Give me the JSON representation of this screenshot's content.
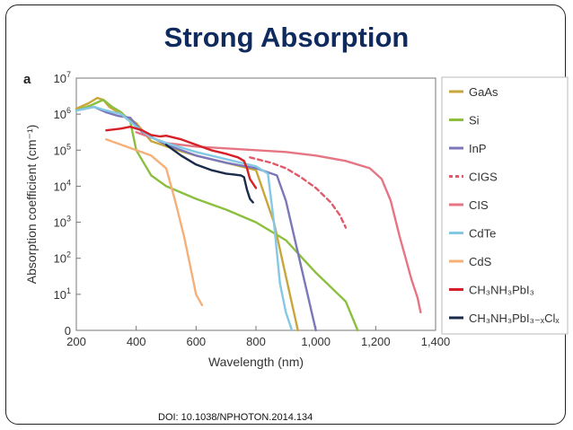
{
  "slide": {
    "title": "Strong Absorption",
    "doi": "DOI: 10.1038/NPHOTON.2014.134"
  },
  "chart_data": {
    "type": "line",
    "panel_label": "a",
    "xlabel": "Wavelength (nm)",
    "ylabel": "Absorption coefficient (cm⁻¹)",
    "xlim": [
      200,
      1400
    ],
    "ylim": [
      0,
      7
    ],
    "y_scale": "log10 (exponent shown; bottom tick 0)",
    "x_ticks": [
      200,
      400,
      600,
      800,
      1000,
      1200,
      1400
    ],
    "x_tick_labels": [
      "200",
      "400",
      "600",
      "800",
      "1,000",
      "1,200",
      "1,400"
    ],
    "y_ticks": [
      0,
      1,
      2,
      3,
      4,
      5,
      6,
      7
    ],
    "y_tick_labels": [
      "0",
      "10",
      "10",
      "10",
      "10",
      "10",
      "10",
      "10"
    ],
    "y_tick_exponents": [
      "",
      "1",
      "2",
      "3",
      "4",
      "5",
      "6",
      "7"
    ],
    "legend_position": "right",
    "grid": false,
    "series": [
      {
        "name": "GaAs",
        "color": "#c8a63a",
        "dash": false,
        "x": [
          200,
          240,
          270,
          290,
          310,
          340,
          400,
          450,
          520,
          600,
          700,
          800,
          860,
          900,
          940
        ],
        "y": [
          6.15,
          6.3,
          6.45,
          6.4,
          6.2,
          6.05,
          5.75,
          5.25,
          5.05,
          4.85,
          4.65,
          4.45,
          3.0,
          1.5,
          0
        ]
      },
      {
        "name": "Si",
        "color": "#8cbf3f",
        "dash": false,
        "x": [
          200,
          250,
          290,
          320,
          350,
          380,
          400,
          450,
          500,
          600,
          700,
          800,
          900,
          1000,
          1100,
          1140
        ],
        "y": [
          6.1,
          6.25,
          6.4,
          6.2,
          6.05,
          5.8,
          5.0,
          4.3,
          4.0,
          3.65,
          3.35,
          3.0,
          2.5,
          1.6,
          0.8,
          0
        ]
      },
      {
        "name": "InP",
        "color": "#7b77b8",
        "dash": false,
        "x": [
          200,
          260,
          300,
          340,
          380,
          420,
          500,
          600,
          700,
          800,
          870,
          900,
          950,
          1000
        ],
        "y": [
          6.1,
          6.2,
          6.05,
          5.95,
          5.9,
          5.5,
          5.15,
          4.85,
          4.65,
          4.5,
          4.3,
          3.6,
          1.8,
          0
        ]
      },
      {
        "name": "CIGS",
        "color": "#e05a6a",
        "dash": true,
        "x": [
          780,
          850,
          900,
          950,
          1000,
          1050,
          1080,
          1100
        ],
        "y": [
          4.8,
          4.65,
          4.5,
          4.25,
          3.95,
          3.55,
          3.2,
          2.85
        ]
      },
      {
        "name": "CIS",
        "color": "#e57583",
        "dash": false,
        "x": [
          400,
          500,
          600,
          700,
          800,
          900,
          1000,
          1100,
          1180,
          1220,
          1250,
          1280,
          1300,
          1320,
          1340,
          1350
        ],
        "y": [
          5.5,
          5.2,
          5.1,
          5.05,
          5.0,
          4.95,
          4.85,
          4.7,
          4.5,
          4.2,
          3.6,
          2.6,
          2.0,
          1.4,
          0.9,
          0.5
        ]
      },
      {
        "name": "CdTe",
        "color": "#84c8e5",
        "dash": false,
        "x": [
          200,
          260,
          300,
          350,
          400,
          450,
          500,
          600,
          700,
          800,
          840,
          860,
          880,
          900,
          920
        ],
        "y": [
          6.1,
          6.2,
          6.1,
          6.0,
          5.65,
          5.35,
          5.2,
          4.95,
          4.75,
          4.55,
          4.35,
          3.0,
          1.3,
          0.5,
          0
        ]
      },
      {
        "name": "CdS",
        "color": "#f5b07a",
        "dash": false,
        "x": [
          300,
          350,
          400,
          450,
          500,
          530,
          560,
          580,
          600,
          620
        ],
        "y": [
          5.3,
          5.15,
          5.0,
          4.85,
          4.5,
          3.6,
          2.6,
          1.8,
          1.0,
          0.7
        ]
      },
      {
        "name": "CH3NH3PbI3",
        "color": "#d62027",
        "dash": false,
        "x": [
          300,
          350,
          380,
          420,
          450,
          480,
          500,
          550,
          600,
          650,
          700,
          740,
          760,
          770,
          780,
          800
        ],
        "y": [
          5.55,
          5.6,
          5.65,
          5.55,
          5.42,
          5.38,
          5.4,
          5.3,
          5.15,
          5.0,
          4.9,
          4.8,
          4.7,
          4.5,
          4.2,
          3.95
        ]
      },
      {
        "name": "CH3NH3PbI3-xClx",
        "color": "#1b2b4a",
        "dash": false,
        "x": [
          500,
          550,
          600,
          650,
          700,
          730,
          750,
          760,
          770,
          780,
          790
        ],
        "y": [
          5.15,
          4.85,
          4.6,
          4.45,
          4.35,
          4.32,
          4.3,
          4.25,
          3.9,
          3.65,
          3.55
        ]
      }
    ],
    "legend": [
      {
        "text": "GaAs",
        "color": "#c8a63a",
        "dash": false
      },
      {
        "text": "Si",
        "color": "#8cbf3f",
        "dash": false
      },
      {
        "text": "InP",
        "color": "#7b77b8",
        "dash": false
      },
      {
        "text": "CIGS",
        "color": "#e05a6a",
        "dash": true
      },
      {
        "text": "CIS",
        "color": "#e57583",
        "dash": false
      },
      {
        "text": "CdTe",
        "color": "#84c8e5",
        "dash": false
      },
      {
        "text": "CdS",
        "color": "#f5b07a",
        "dash": false
      },
      {
        "text": "CH₃NH₃PbI₃",
        "color": "#d62027",
        "dash": false
      },
      {
        "text": "CH₃NH₃PbI₃₋ₓClₓ",
        "color": "#1b2b4a",
        "dash": false
      }
    ]
  }
}
